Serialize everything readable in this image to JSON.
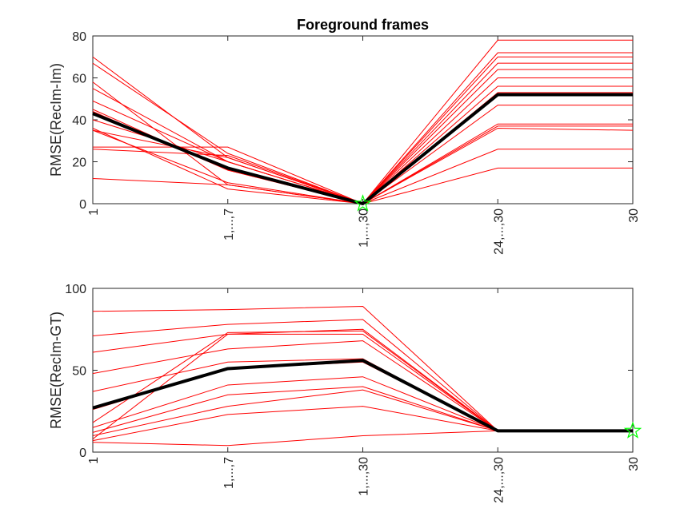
{
  "chart_data": [
    {
      "type": "line",
      "title": "Foreground frames",
      "ylabel": "RMSE(RecIm-Im)",
      "xlabel": "",
      "categories": [
        "1",
        "1,...,7",
        "1,...,30",
        "24,...,30",
        "30"
      ],
      "ylim": [
        0,
        80
      ],
      "yticks": [
        "0",
        "20",
        "40",
        "60",
        "80"
      ],
      "grid": false,
      "series_color": "#ff0000",
      "mean_color": "#000000",
      "marker": {
        "x_index": 2,
        "y": 0,
        "symbol": "star",
        "color": "#00ff00"
      },
      "series": [
        {
          "values": [
            70,
            22,
            0,
            78,
            78
          ]
        },
        {
          "values": [
            67,
            24,
            0,
            72,
            72
          ]
        },
        {
          "values": [
            58,
            9,
            0,
            70,
            70
          ]
        },
        {
          "values": [
            55,
            20,
            0,
            67,
            67
          ]
        },
        {
          "values": [
            49,
            20,
            0,
            64,
            64
          ]
        },
        {
          "values": [
            45,
            16,
            0,
            60,
            60
          ]
        },
        {
          "values": [
            36,
            7,
            0,
            56,
            56
          ]
        },
        {
          "values": [
            35,
            22,
            0,
            53,
            53
          ]
        },
        {
          "values": [
            35,
            10,
            0,
            47,
            47
          ]
        },
        {
          "values": [
            27,
            27,
            0,
            38,
            38
          ]
        },
        {
          "values": [
            26,
            23,
            0,
            37,
            37
          ]
        },
        {
          "values": [
            12,
            9,
            0,
            36,
            35
          ]
        },
        {
          "values": [
            40,
            20,
            0,
            26,
            26
          ]
        },
        {
          "values": [
            44,
            16,
            0,
            17,
            17
          ]
        }
      ],
      "mean": [
        43,
        17,
        0,
        52,
        52
      ]
    },
    {
      "type": "line",
      "title": "",
      "ylabel": "RMSE(RecIm-GT)",
      "xlabel": "",
      "categories": [
        "1",
        "1,...,7",
        "1,...,30",
        "24,...,30",
        "30"
      ],
      "ylim": [
        0,
        100
      ],
      "yticks": [
        "0",
        "50",
        "100"
      ],
      "grid": false,
      "series_color": "#ff0000",
      "mean_color": "#000000",
      "marker": {
        "x_index": 4,
        "y": 13,
        "symbol": "star",
        "color": "#00ff00"
      },
      "series": [
        {
          "values": [
            86,
            87,
            89,
            13,
            13
          ]
        },
        {
          "values": [
            71,
            78,
            81,
            13,
            13
          ]
        },
        {
          "values": [
            61,
            72,
            75,
            13,
            13
          ]
        },
        {
          "values": [
            48,
            63,
            68,
            13,
            13
          ]
        },
        {
          "values": [
            37,
            55,
            57,
            13,
            13
          ]
        },
        {
          "values": [
            18,
            73,
            74,
            13,
            13
          ]
        },
        {
          "values": [
            15,
            41,
            46,
            13,
            13
          ]
        },
        {
          "values": [
            12,
            35,
            40,
            13,
            13
          ]
        },
        {
          "values": [
            10,
            28,
            38,
            13,
            13
          ]
        },
        {
          "values": [
            8,
            72,
            72,
            13,
            13
          ]
        },
        {
          "values": [
            7,
            23,
            28,
            13,
            13
          ]
        },
        {
          "values": [
            6,
            4,
            10,
            13,
            13
          ]
        },
        {
          "values": [
            26,
            51,
            55,
            13,
            13
          ]
        }
      ],
      "mean": [
        27,
        51,
        56,
        13,
        13
      ]
    }
  ]
}
